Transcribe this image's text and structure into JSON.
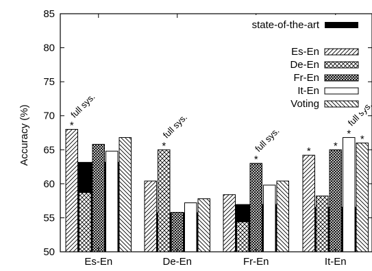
{
  "chart_data": {
    "type": "bar",
    "title": "",
    "xlabel": "",
    "ylabel": "Accuracy (%)",
    "ylim": [
      50,
      85
    ],
    "yticks": [
      50,
      55,
      60,
      65,
      70,
      75,
      80,
      85
    ],
    "categories": [
      "Es-En",
      "De-En",
      "Fr-En",
      "It-En"
    ],
    "state_of_the_art": {
      "name": "state-of-the-art",
      "values": [
        63.2,
        55.8,
        57.0,
        56.6
      ]
    },
    "series": [
      {
        "name": "Es-En",
        "pattern": "diag-right",
        "values": [
          68.0,
          60.4,
          58.4,
          64.2
        ]
      },
      {
        "name": "De-En",
        "pattern": "crosshatch",
        "values": [
          58.7,
          65.0,
          54.4,
          58.2
        ]
      },
      {
        "name": "Fr-En",
        "pattern": "dense-check",
        "values": [
          65.8,
          55.8,
          63.0,
          65.0
        ]
      },
      {
        "name": "It-En",
        "pattern": "empty",
        "values": [
          64.8,
          57.2,
          59.8,
          66.8
        ]
      },
      {
        "name": "Voting",
        "pattern": "diag-left",
        "values": [
          66.8,
          57.8,
          60.4,
          66.0
        ]
      }
    ],
    "stars": [
      {
        "category": 0,
        "series": 0
      },
      {
        "category": 1,
        "series": 1
      },
      {
        "category": 2,
        "series": 2
      },
      {
        "category": 3,
        "series": 0
      },
      {
        "category": 3,
        "series": 2
      },
      {
        "category": 3,
        "series": 3
      },
      {
        "category": 3,
        "series": 4
      }
    ],
    "star_symbol": "*",
    "annotations": [
      {
        "text": "full sys.",
        "category": 0,
        "series": 0
      },
      {
        "text": "full sys.",
        "category": 1,
        "series": 1
      },
      {
        "text": "full sys.",
        "category": 2,
        "series": 2
      },
      {
        "text": "full sys.",
        "category": 3,
        "series": 3
      }
    ],
    "legend_position": "top-right",
    "grid": false,
    "colors": {
      "bar_stroke": "#000000",
      "sota_fill": "#000000",
      "background": "#ffffff"
    }
  }
}
